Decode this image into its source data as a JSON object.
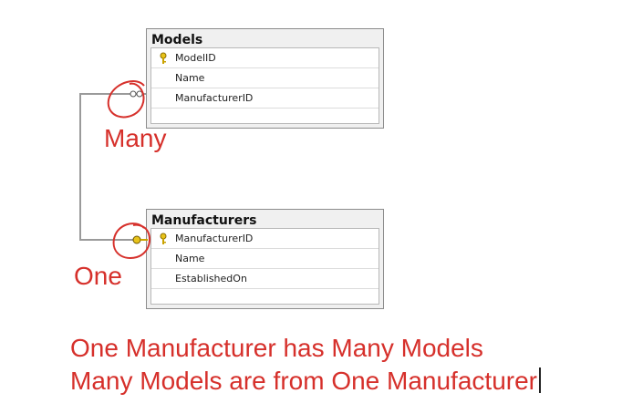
{
  "tables": {
    "models": {
      "title": "Models",
      "columns": [
        {
          "name": "ModelID",
          "primary_key": true
        },
        {
          "name": "Name",
          "primary_key": false
        },
        {
          "name": "ManufacturerID",
          "primary_key": false
        }
      ]
    },
    "manufacturers": {
      "title": "Manufacturers",
      "columns": [
        {
          "name": "ManufacturerID",
          "primary_key": true
        },
        {
          "name": "Name",
          "primary_key": false
        },
        {
          "name": "EstablishedOn",
          "primary_key": false
        }
      ]
    }
  },
  "annotations": {
    "many_label": "Many",
    "one_label": "One",
    "caption_line1": "One Manufacturer has Many Models",
    "caption_line2": "Many Models are from One Manufacturer"
  },
  "colors": {
    "annotation_red": "#d6302b",
    "key_gold": "#e8c31a",
    "connector_gray": "#a0a0a0"
  }
}
